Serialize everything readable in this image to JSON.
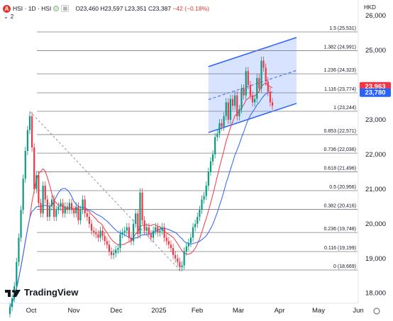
{
  "header": {
    "symbol": "HSI · 1D · HSI",
    "open": "O23,460",
    "high": "H23,597",
    "low": "L23,351",
    "close": "C23,387",
    "change": "−42 (−0.18%)",
    "indicator_count": "2",
    "currency": "HKD",
    "logo_text": "TradingView"
  },
  "colors": {
    "up": "#089981",
    "down": "#f23645",
    "ma_fast": "#f23645",
    "ma_slow": "#2962ff",
    "channel": "#2962ff"
  },
  "chart_data": {
    "type": "candlestick",
    "y_axis": {
      "ticks": [
        18000,
        19000,
        20000,
        21000,
        22000,
        23000,
        24000,
        25000,
        26000
      ],
      "tick_labels": [
        "18,000",
        "19,000",
        "20,000",
        "21,000",
        "22,000",
        "23,000",
        "24,000",
        "25,000",
        "26,000"
      ],
      "range": [
        17300,
        26450
      ],
      "position": "right"
    },
    "x_axis": {
      "labels": [
        "Oct",
        "Nov",
        "Dec",
        "2025",
        "Feb",
        "Mar",
        "Apr",
        "May",
        "Jun"
      ]
    },
    "price_labels": [
      {
        "text": "23,963",
        "value": 23963,
        "color": "#f23645"
      },
      {
        "text": "23,780",
        "value": 23780,
        "color": "#2962ff"
      }
    ],
    "fib_levels": [
      {
        "ratio": "1.5",
        "value": 25531,
        "label": "1.5 (25,531)"
      },
      {
        "ratio": "1.382",
        "value": 24991,
        "label": "1.382 (24,991)"
      },
      {
        "ratio": "1.236",
        "value": 24323,
        "label": "1.236 (24,323)"
      },
      {
        "ratio": "1.116",
        "value": 23774,
        "label": "1.116 (23,774)"
      },
      {
        "ratio": "1",
        "value": 23244,
        "label": "1 (23,244)"
      },
      {
        "ratio": "0.853",
        "value": 22571,
        "label": "0.853 (22,571)"
      },
      {
        "ratio": "0.736",
        "value": 22036,
        "label": "0.736 (22,036)"
      },
      {
        "ratio": "0.618",
        "value": 21496,
        "label": "0.618 (21,496)"
      },
      {
        "ratio": "0.5",
        "value": 20956,
        "label": "0.5 (20,956)"
      },
      {
        "ratio": "0.382",
        "value": 20416,
        "label": "0.382 (20,416)"
      },
      {
        "ratio": "0.236",
        "value": 19748,
        "label": "0.236 (19,748)"
      },
      {
        "ratio": "0.116",
        "value": 19199,
        "label": "0.116 (19,199)"
      },
      {
        "ratio": "0",
        "value": 18669,
        "label": "0 (18,669)"
      }
    ],
    "closes": [
      17600,
      17850,
      18200,
      18900,
      19600,
      20400,
      21300,
      22100,
      22700,
      23100,
      22200,
      21000,
      21400,
      20600,
      20300,
      21100,
      20700,
      20200,
      20500,
      20700,
      20200,
      20400,
      20500,
      20600,
      20300,
      20500,
      20400,
      20600,
      20400,
      20300,
      20500,
      20100,
      20400,
      20700,
      20300,
      20200,
      20000,
      19800,
      19750,
      19700,
      19600,
      19800,
      19650,
      19500,
      19400,
      19200,
      19100,
      19150,
      19250,
      19300,
      19700,
      19750,
      19800,
      19900,
      19600,
      19500,
      20000,
      20300,
      19700,
      20900,
      20100,
      19800,
      19900,
      19700,
      19600,
      19800,
      19900,
      19750,
      19800,
      19900,
      19600,
      19500,
      19400,
      19300,
      19100,
      19000,
      18900,
      18750,
      18800,
      19200,
      19350,
      19450,
      19600,
      19900,
      20000,
      20200,
      20400,
      20700,
      20800,
      21100,
      21500,
      21800,
      22000,
      22500,
      22600,
      22900,
      22800,
      23100,
      23500,
      23000,
      23600,
      23400,
      23700,
      23100,
      23300,
      23900,
      23700,
      24400,
      24000,
      23700,
      23500,
      23600,
      24200,
      23900,
      24700,
      24500,
      24100,
      23800,
      23500,
      23400
    ],
    "channel": {
      "start": {
        "x": "Feb",
        "y": 24530
      },
      "end": {
        "x": "Apr",
        "y": 25370
      },
      "width": 1900
    },
    "legend": "none",
    "grid": false
  }
}
